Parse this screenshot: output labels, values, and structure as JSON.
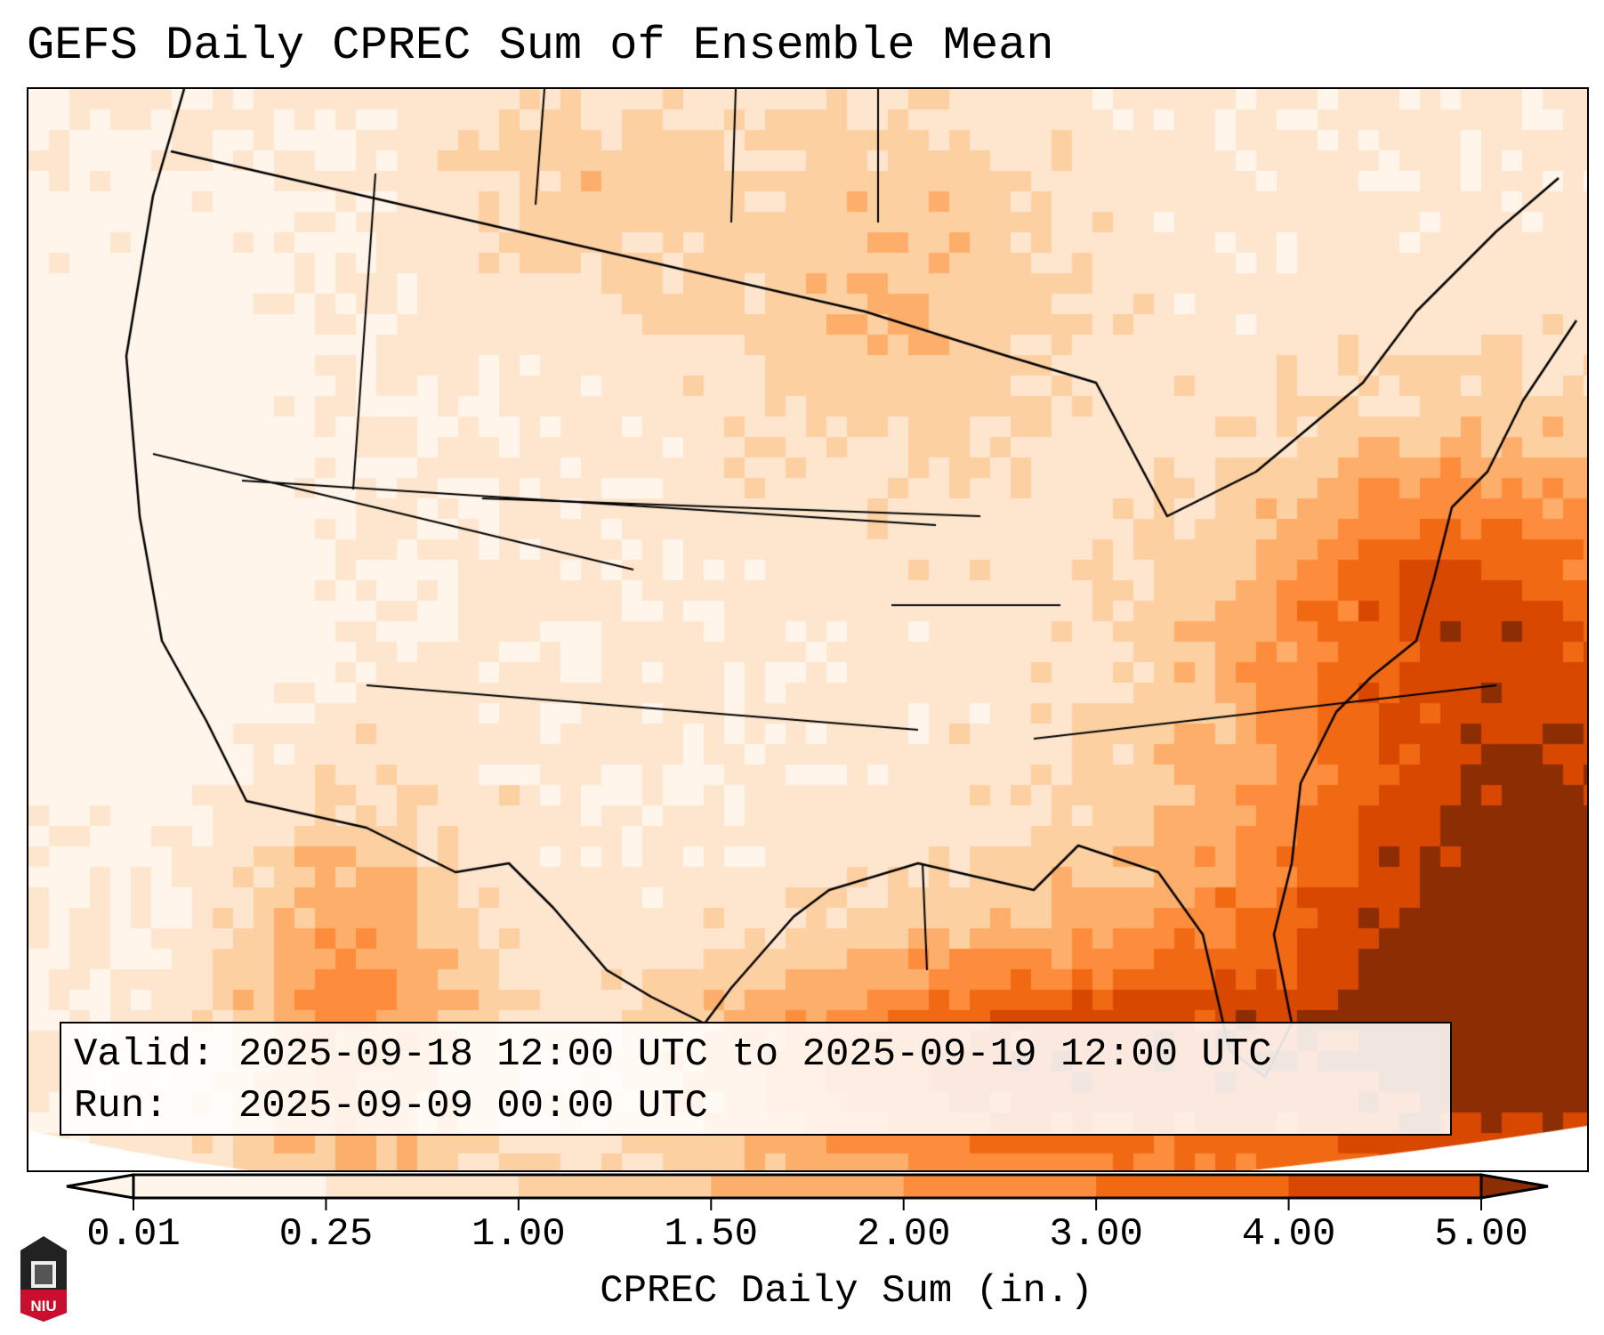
{
  "title": "GEFS Daily CPREC Sum of Ensemble Mean",
  "info": {
    "valid_line": "Valid: 2025-09-18 12:00 UTC to 2025-09-19 12:00 UTC",
    "run_line": "Run:   2025-09-09 00:00 UTC"
  },
  "colorbar": {
    "label": "CPREC Daily Sum (in.)",
    "ticks": [
      "0.01",
      "0.25",
      "1.00",
      "1.50",
      "2.00",
      "3.00",
      "4.00",
      "5.00"
    ],
    "colors": [
      "#fff5eb",
      "#fee6ce",
      "#fdd0a2",
      "#fdae6b",
      "#fd8d3c",
      "#f16913",
      "#d94801",
      "#8c2d04"
    ],
    "extend": "both"
  },
  "logo": {
    "text": "NIU"
  }
}
